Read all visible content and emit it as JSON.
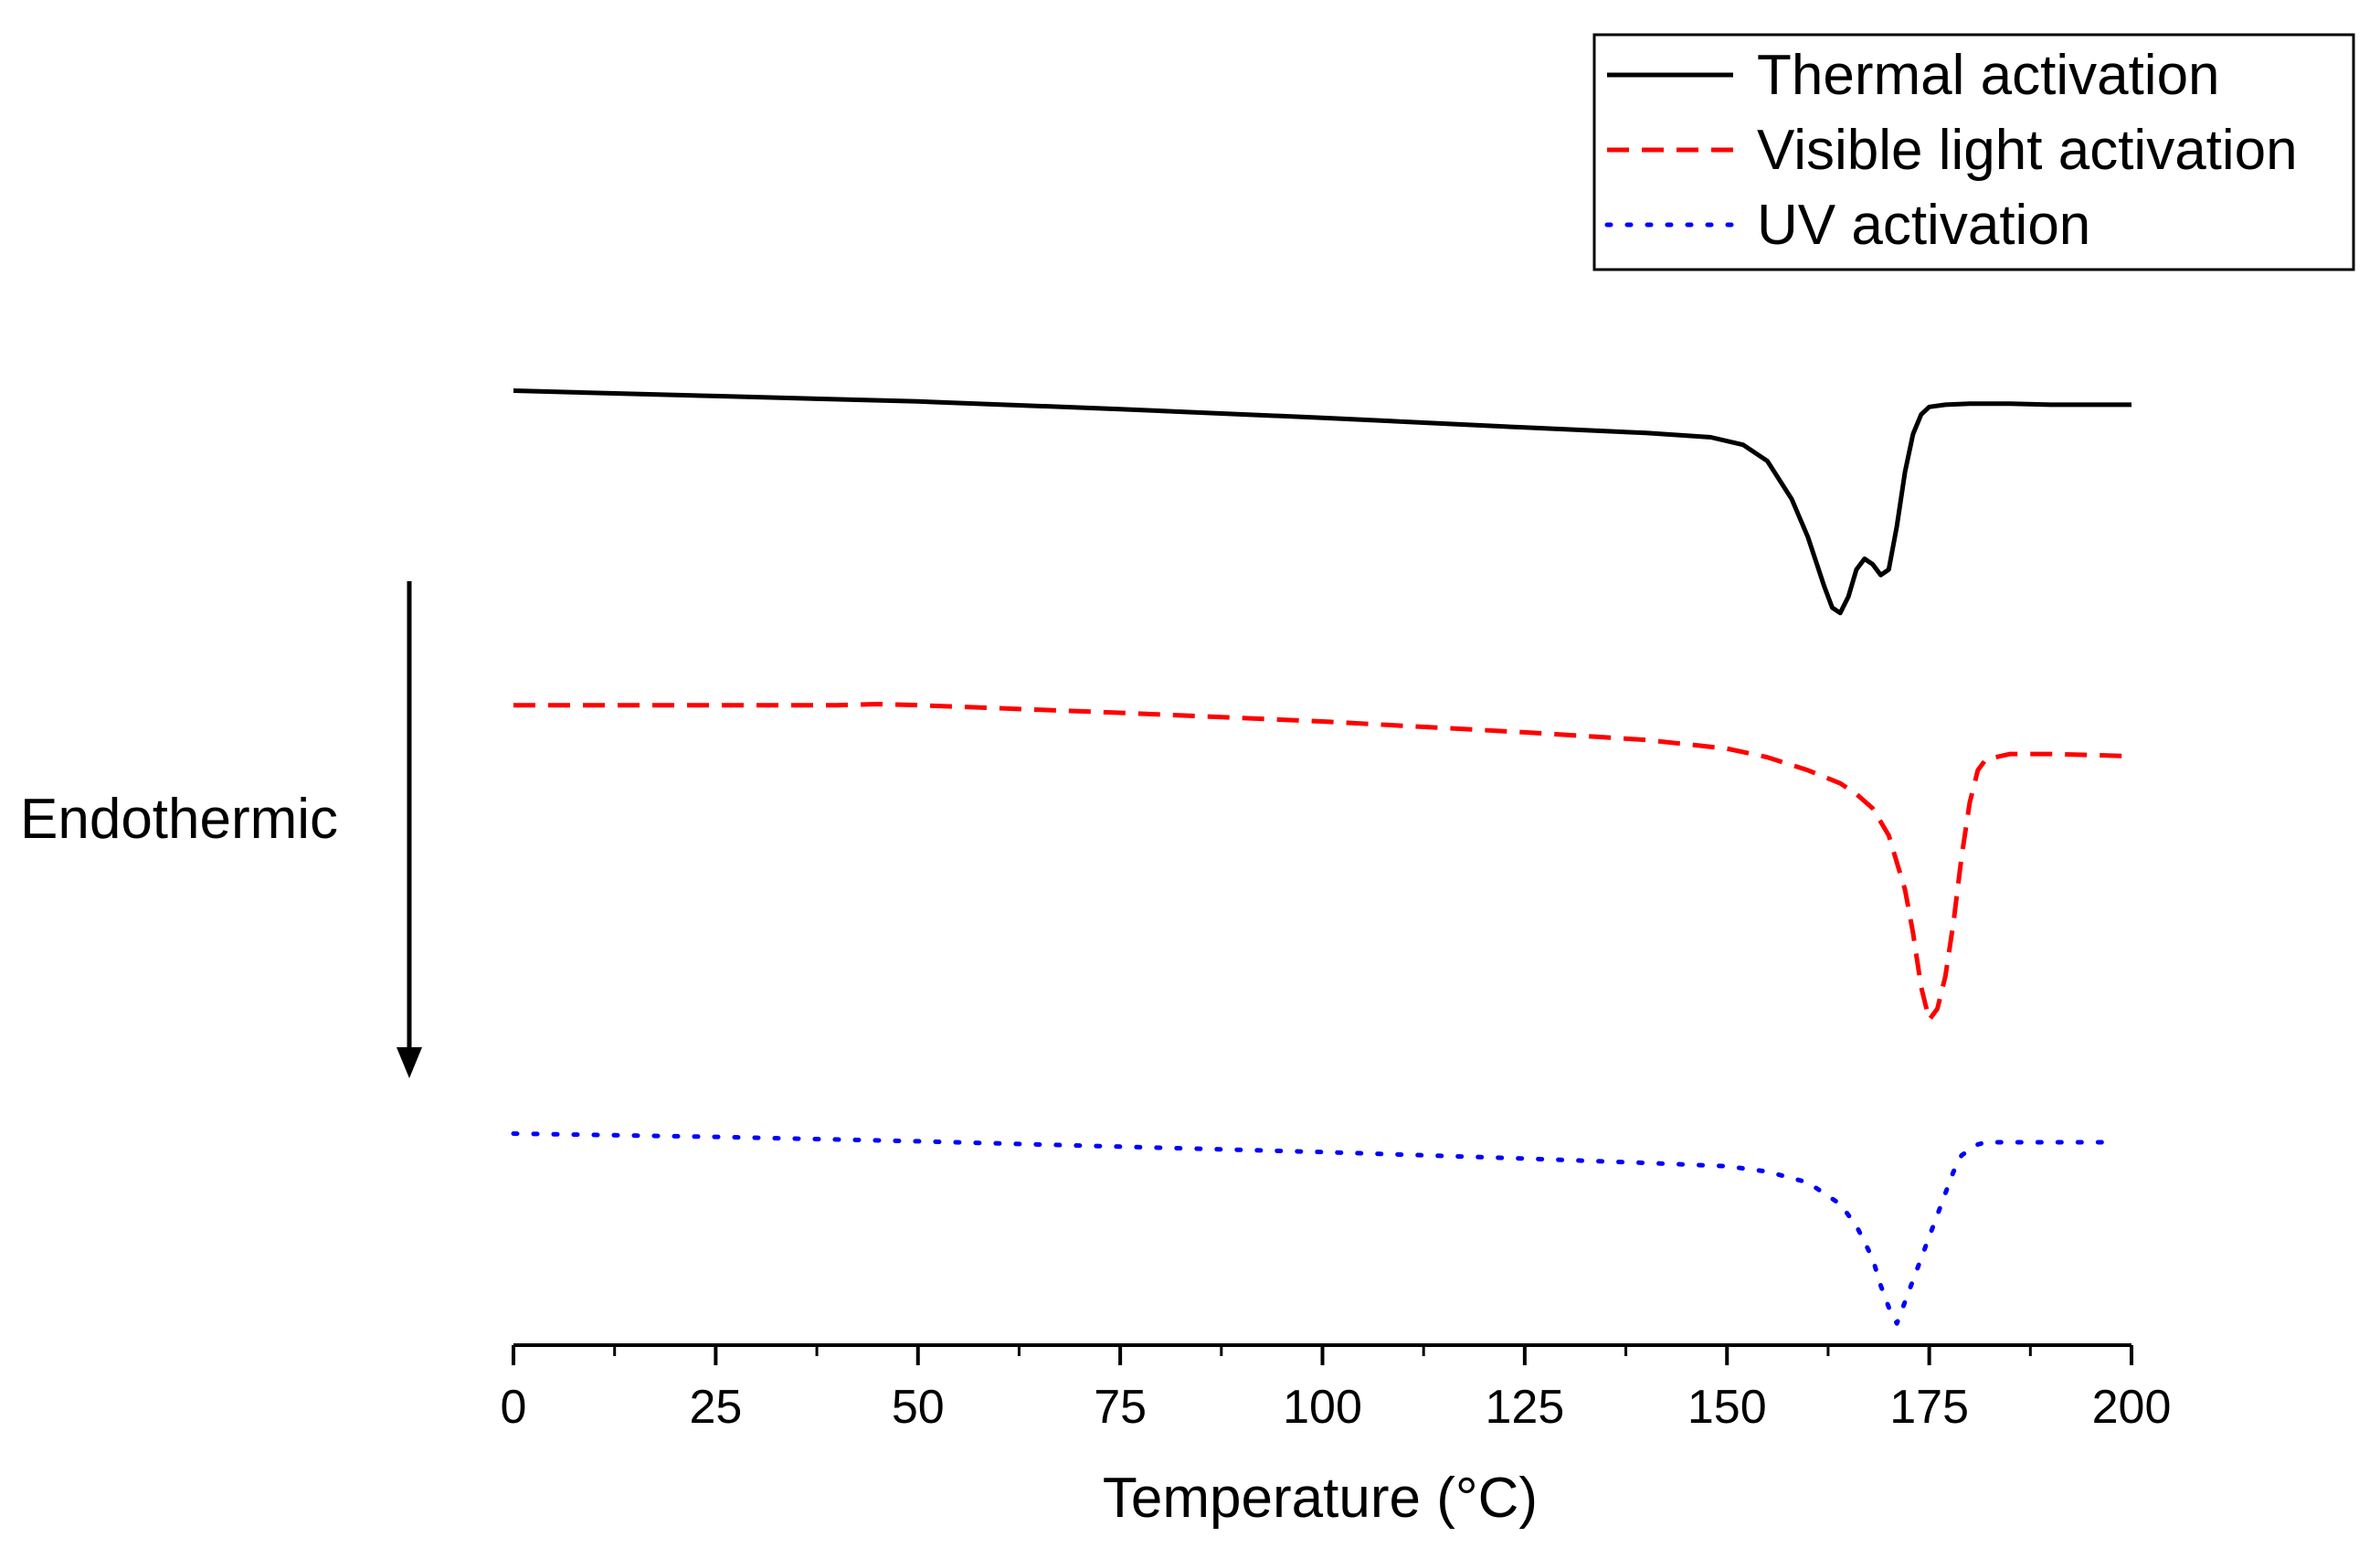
{
  "chart_data": {
    "type": "line",
    "title": "",
    "xlabel": "Temperature (°C)",
    "ylabel": "",
    "xlim": [
      0,
      200
    ],
    "ylim": [
      -8.8,
      0.4
    ],
    "x_ticks": [
      0,
      25,
      50,
      75,
      100,
      125,
      150,
      175,
      200
    ],
    "x_tick_labels": [
      "0",
      "25",
      "50",
      "75",
      "100",
      "125",
      "150",
      "175",
      "200"
    ],
    "y_axis_visible": false,
    "grid": false,
    "legend_position": "top-right",
    "annotation": {
      "text": "Endothermic",
      "arrow_direction": "down"
    },
    "series": [
      {
        "name": "Thermal activation",
        "color": "#000000",
        "style": "solid",
        "x": [
          0,
          25,
          50,
          75,
          100,
          125,
          140,
          148,
          152,
          155,
          158,
          160,
          162,
          163,
          164,
          165,
          166,
          167,
          168,
          169,
          170,
          171,
          172,
          173,
          174,
          175,
          177,
          180,
          185,
          190,
          200
        ],
        "y": [
          0.0,
          -0.05,
          -0.1,
          -0.17,
          -0.25,
          -0.34,
          -0.39,
          -0.43,
          -0.5,
          -0.65,
          -1.0,
          -1.35,
          -1.8,
          -2.0,
          -2.05,
          -1.9,
          -1.65,
          -1.55,
          -1.6,
          -1.7,
          -1.65,
          -1.25,
          -0.75,
          -0.4,
          -0.22,
          -0.15,
          -0.13,
          -0.12,
          -0.12,
          -0.13,
          -0.13
        ]
      },
      {
        "name": "Visible light activation",
        "color": "#ff0000",
        "style": "dashed",
        "x": [
          0,
          25,
          40,
          45,
          50,
          75,
          100,
          125,
          140,
          150,
          155,
          160,
          164,
          166,
          168,
          170,
          172,
          173,
          174,
          175,
          176,
          177,
          178,
          179,
          180,
          181,
          182,
          185,
          190,
          200
        ],
        "y": [
          -2.9,
          -2.9,
          -2.9,
          -2.89,
          -2.9,
          -2.97,
          -3.05,
          -3.15,
          -3.22,
          -3.3,
          -3.38,
          -3.5,
          -3.62,
          -3.72,
          -3.85,
          -4.1,
          -4.6,
          -5.0,
          -5.5,
          -5.8,
          -5.7,
          -5.4,
          -4.9,
          -4.3,
          -3.8,
          -3.5,
          -3.4,
          -3.35,
          -3.35,
          -3.37
        ]
      },
      {
        "name": "UV activation",
        "color": "#0000ff",
        "style": "dotted",
        "x": [
          0,
          25,
          50,
          75,
          100,
          125,
          140,
          150,
          155,
          160,
          164,
          166,
          168,
          169,
          170,
          171,
          172,
          173,
          174,
          175,
          176,
          177,
          178,
          179,
          180,
          181,
          182,
          185,
          190,
          198
        ],
        "y": [
          -6.85,
          -6.88,
          -6.92,
          -6.97,
          -7.02,
          -7.08,
          -7.12,
          -7.15,
          -7.2,
          -7.3,
          -7.5,
          -7.7,
          -8.0,
          -8.25,
          -8.45,
          -8.6,
          -8.4,
          -8.2,
          -8.0,
          -7.8,
          -7.6,
          -7.4,
          -7.2,
          -7.05,
          -7.0,
          -6.95,
          -6.93,
          -6.93,
          -6.93,
          -6.93
        ]
      }
    ]
  }
}
